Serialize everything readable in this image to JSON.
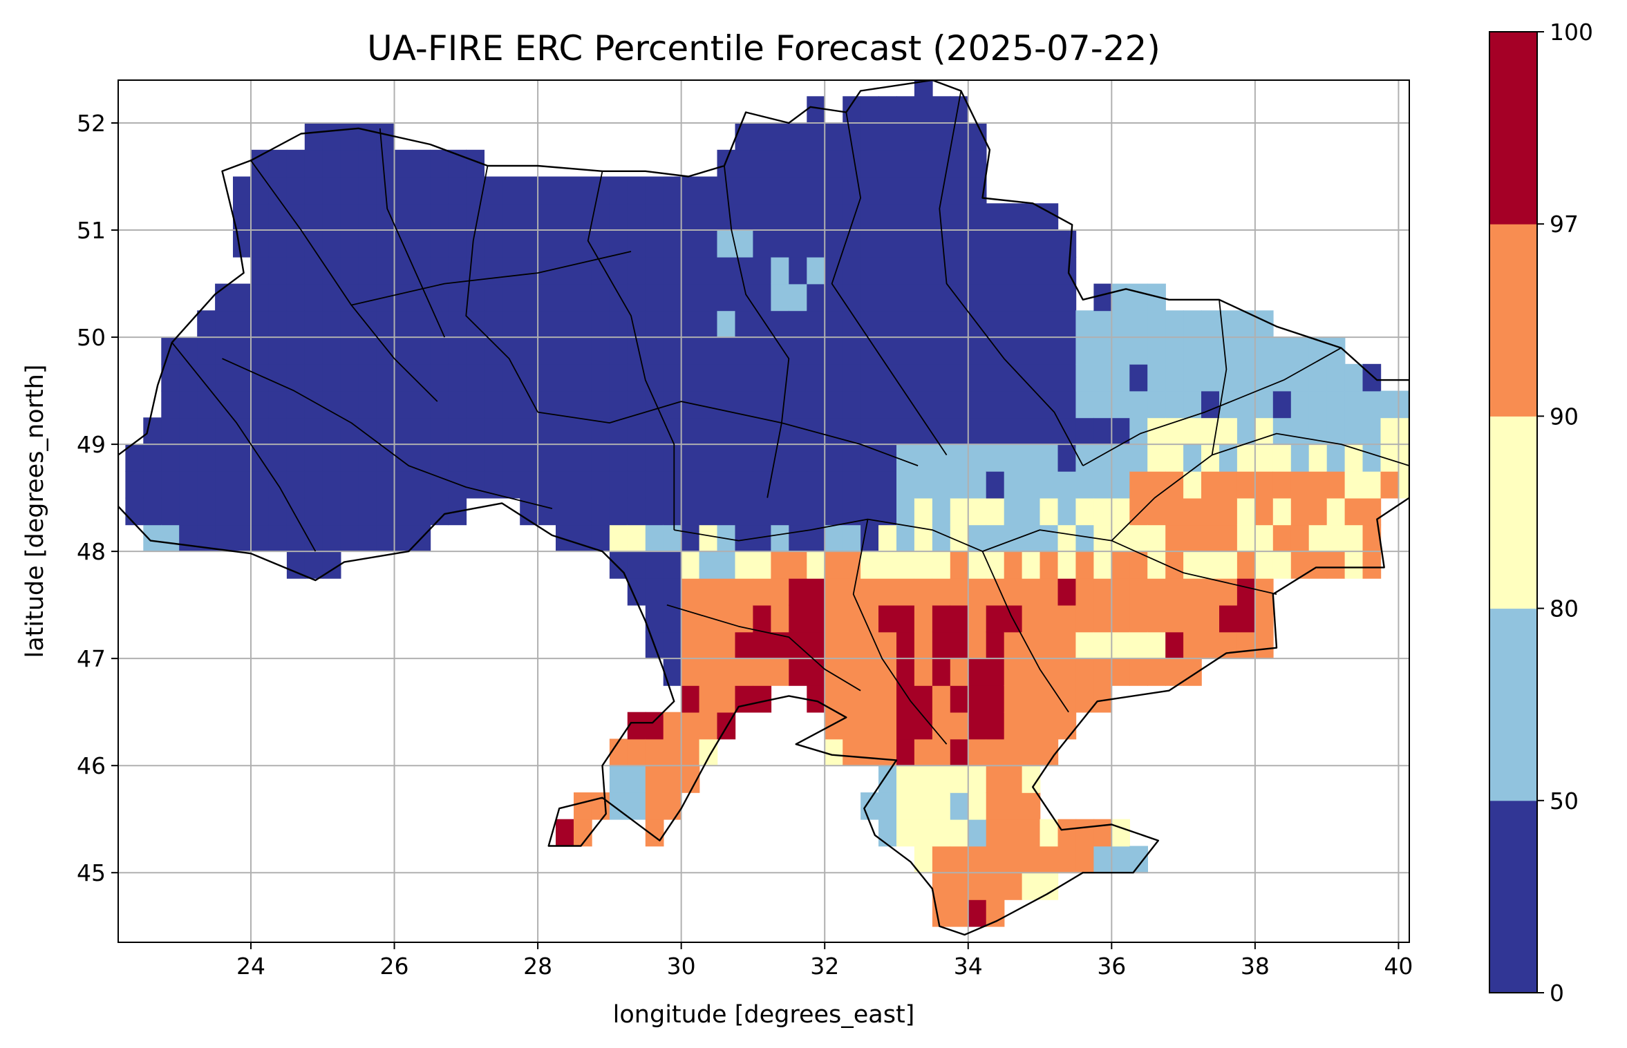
{
  "title": "UA-FIRE ERC Percentile Forecast (2025-07-22)",
  "xlabel": "longitude [degrees_east]",
  "ylabel": "latitude [degrees_north]",
  "x_ticks": [
    "24",
    "26",
    "28",
    "30",
    "32",
    "34",
    "36",
    "38",
    "40"
  ],
  "y_ticks": [
    "45",
    "46",
    "47",
    "48",
    "49",
    "50",
    "51",
    "52"
  ],
  "colorbar": {
    "tick_labels": [
      "0",
      "50",
      "80",
      "90",
      "97",
      "100"
    ],
    "bins": [
      {
        "min": 0,
        "max": 50,
        "color": "#313695"
      },
      {
        "min": 50,
        "max": 80,
        "color": "#91c3de"
      },
      {
        "min": 80,
        "max": 90,
        "color": "#ffffbf"
      },
      {
        "min": 90,
        "max": 97,
        "color": "#f88d51"
      },
      {
        "min": 97,
        "max": 100,
        "color": "#a50026"
      }
    ]
  },
  "chart_data": {
    "type": "heatmap",
    "xlim": [
      22.15,
      40.15
    ],
    "ylim": [
      44.35,
      52.4
    ],
    "grid": true,
    "cell_size_deg": 0.25,
    "legend_placement": "right colorbar",
    "category_regions_lon_lat": [
      {
        "bin": "0-50",
        "region": "north, west and central Ukraine, roughly north of 48.2N west of 30E and north of 49.2N east of 33E"
      },
      {
        "bin": "50-80",
        "region": "eastern Kharkiv and Luhansk area 35.5-40E 48.5-50.3N; scattered strip along 48N near 29-32E; Crimea west coast"
      },
      {
        "bin": "80-90",
        "region": "belt around 48-48.8N east of 33E; northern Crimea; eastern Donetsk 38-40E 48-49N"
      },
      {
        "bin": "90-97",
        "region": "south Ukraine 30-38.5E 46-48.2N, Zaporizhzhia and Kherson oblasts, eastern Crimea"
      },
      {
        "bin": "97-100",
        "region": "hotspots around 30.5-34.5E 46.3-47.7N; 37.2-38E 47.3-47.6N; 34-34.3E 44.5-44.8N"
      }
    ]
  }
}
